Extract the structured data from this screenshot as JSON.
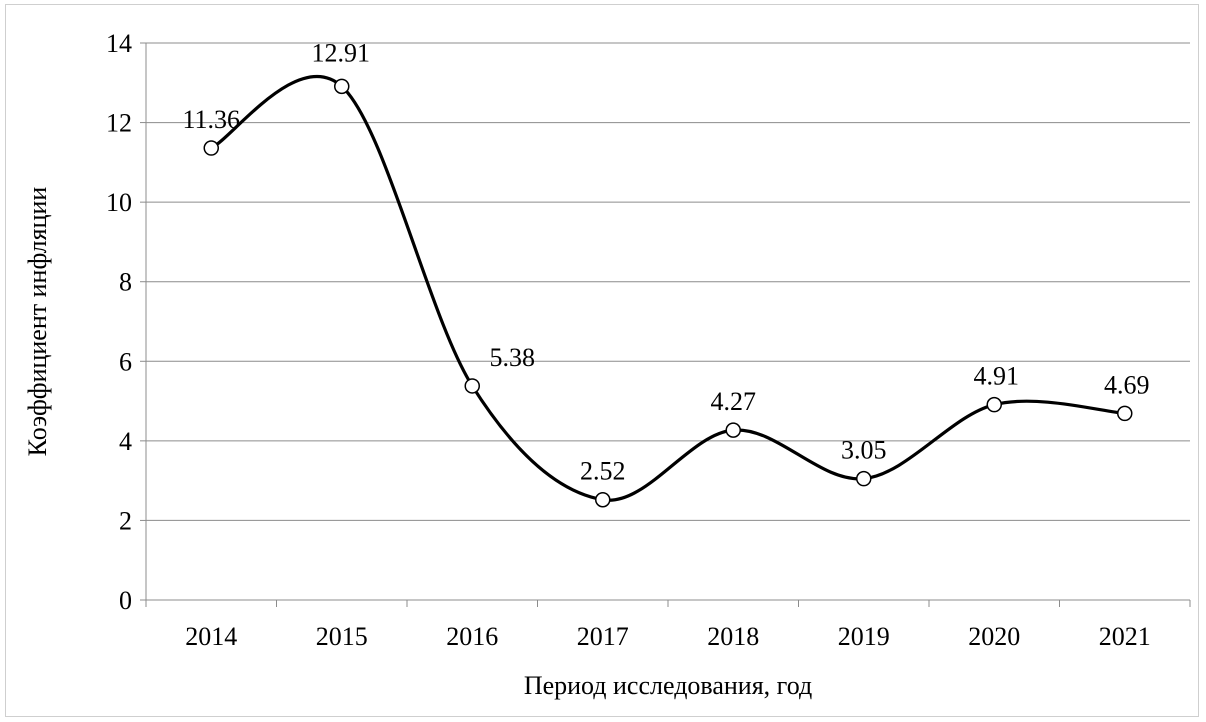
{
  "chart_data": {
    "type": "line",
    "smooth": true,
    "categories": [
      "2014",
      "2015",
      "2016",
      "2017",
      "2018",
      "2019",
      "2020",
      "2021"
    ],
    "series": [
      {
        "values": [
          11.36,
          12.91,
          5.38,
          2.52,
          4.27,
          3.05,
          4.91,
          4.69
        ],
        "data_labels": [
          "11.36",
          "12.91",
          "5.38",
          "2.52",
          "4.27",
          "3.05",
          "4.91",
          "4.69"
        ],
        "color": "#000000",
        "marker": "open-circle"
      }
    ],
    "yticks": [
      "0",
      "2",
      "4",
      "6",
      "8",
      "10",
      "12",
      "14"
    ],
    "ylim": [
      0,
      14
    ],
    "xlabel": "Период исследования, год",
    "ylabel": "Коэффициент инфляции",
    "grid": "horizontal",
    "legend": "none"
  }
}
